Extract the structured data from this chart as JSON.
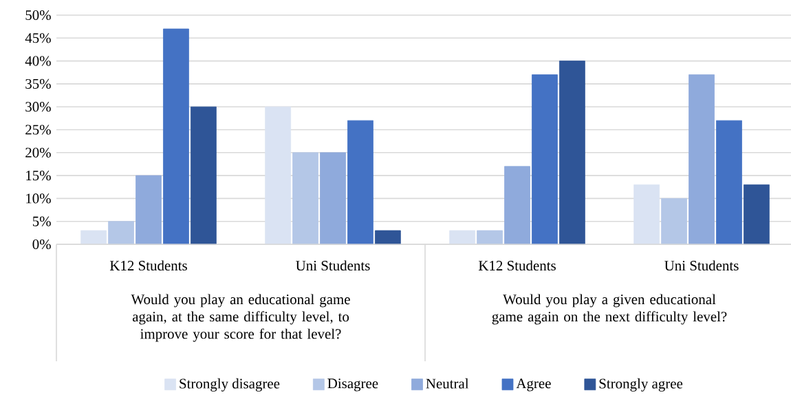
{
  "chart_data": {
    "type": "bar",
    "categories": [
      "K12 Students",
      "Uni Students",
      "K12 Students",
      "Uni Students"
    ],
    "annotations": [
      "Would you play an educational game again, at the same difficulty level, to improve your score for that level?",
      "Would you play a given educational game again on the next difficulty level?"
    ],
    "series": [
      {
        "name": "Strongly disagree",
        "color": "#dae3f3",
        "values": [
          3,
          30,
          3,
          13
        ]
      },
      {
        "name": "Disagree",
        "color": "#b4c7e7",
        "values": [
          5,
          20,
          3,
          10
        ]
      },
      {
        "name": "Neutral",
        "color": "#8faadc",
        "values": [
          15,
          20,
          17,
          37
        ]
      },
      {
        "name": "Agree",
        "color": "#4472c4",
        "values": [
          47,
          27,
          37,
          27
        ]
      },
      {
        "name": "Strongly agree",
        "color": "#2f5597",
        "values": [
          30,
          3,
          40,
          13
        ]
      }
    ],
    "ylim": [
      0,
      50
    ],
    "yticks": [
      {
        "value": 0,
        "label": "0%"
      },
      {
        "value": 5,
        "label": "5%"
      },
      {
        "value": 10,
        "label": "10%"
      },
      {
        "value": 15,
        "label": "15%"
      },
      {
        "value": 20,
        "label": "20%"
      },
      {
        "value": 25,
        "label": "25%"
      },
      {
        "value": 30,
        "label": "30%"
      },
      {
        "value": 35,
        "label": "35%"
      },
      {
        "value": 40,
        "label": "40%"
      },
      {
        "value": 45,
        "label": "45%"
      },
      {
        "value": 50,
        "label": "50%"
      }
    ],
    "grid": "y",
    "legend": "bottom"
  }
}
